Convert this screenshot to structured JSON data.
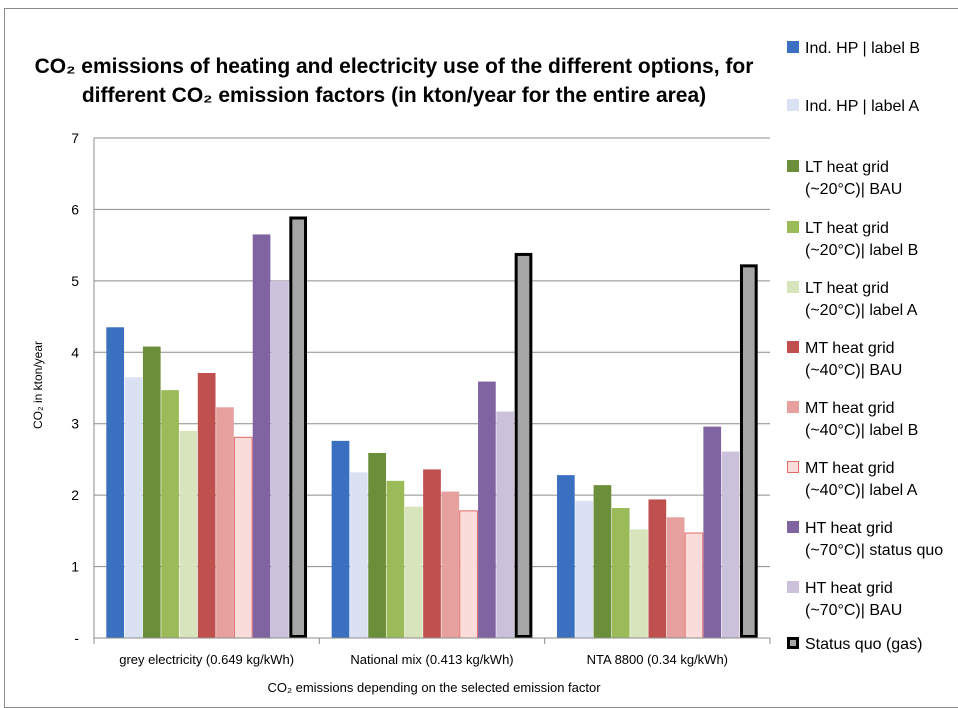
{
  "chart_data": {
    "type": "bar",
    "title": "CO₂ emissions of heating and electricity use of the different options, for different CO₂ emission factors  (in kton/year for the entire area)",
    "xlabel": "CO₂ emissions depending on the selected emission factor",
    "ylabel": "CO₂ in kton/year",
    "ylim": [
      0,
      7
    ],
    "yticks": [
      "-",
      "1",
      "2",
      "3",
      "4",
      "5",
      "6",
      "7"
    ],
    "grid": true,
    "legend_position": "right",
    "categories": [
      "grey electricity (0.649 kg/kWh)",
      "National mix (0.413 kg/kWh)",
      "NTA 8800 (0.34 kg/kWh)"
    ],
    "series": [
      {
        "name": [
          "Ind. HP | label B"
        ],
        "color": "#3b6fc0",
        "values": [
          4.35,
          2.76,
          2.28
        ]
      },
      {
        "name": [
          "Ind. HP | label A"
        ],
        "color": "#d9e1f2",
        "values": [
          3.65,
          2.32,
          1.92
        ]
      },
      {
        "name": [
          "LT heat grid",
          "(~20°C)| BAU"
        ],
        "color": "#6b8e3a",
        "values": [
          4.08,
          2.59,
          2.14
        ]
      },
      {
        "name": [
          "LT heat grid",
          "(~20°C)| label B"
        ],
        "color": "#9bbb59",
        "values": [
          3.47,
          2.2,
          1.82
        ]
      },
      {
        "name": [
          "LT heat grid",
          "(~20°C)| label A"
        ],
        "color": "#d7e4bc",
        "values": [
          2.9,
          1.84,
          1.52
        ]
      },
      {
        "name": [
          "MT heat grid",
          "(~40°C)| BAU"
        ],
        "color": "#c0504d",
        "values": [
          3.71,
          2.36,
          1.94
        ]
      },
      {
        "name": [
          "MT heat grid",
          "(~40°C)| label B"
        ],
        "color": "#e6a19f",
        "values": [
          3.23,
          2.05,
          1.69
        ]
      },
      {
        "name": [
          "MT heat grid",
          "(~40°C)| label A"
        ],
        "color": "#fadcdb",
        "stroke": "#e06c6a",
        "values": [
          2.81,
          1.78,
          1.47
        ]
      },
      {
        "name": [
          "HT heat grid",
          "(~70°C)| status quo"
        ],
        "color": "#8064a2",
        "values": [
          5.65,
          3.59,
          2.96
        ]
      },
      {
        "name": [
          "HT heat grid",
          "(~70°C)| BAU"
        ],
        "color": "#ccc1da",
        "values": [
          5.0,
          3.17,
          2.61
        ]
      },
      {
        "name": [
          "Status quo (gas)"
        ],
        "color": "#a6a6a6",
        "stroke": "#000000",
        "values": [
          5.88,
          5.37,
          5.21
        ]
      }
    ]
  }
}
